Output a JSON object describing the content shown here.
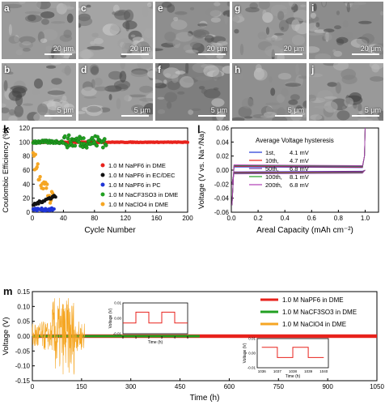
{
  "sem": {
    "panels": [
      {
        "label": "a",
        "scale": "20 μm",
        "tone": "#9a9a9a"
      },
      {
        "label": "c",
        "scale": "20 μm",
        "tone": "#a4a4a4"
      },
      {
        "label": "e",
        "scale": "20 μm",
        "tone": "#8e8e8e"
      },
      {
        "label": "g",
        "scale": "20 μm",
        "tone": "#979797"
      },
      {
        "label": "i",
        "scale": "20 μm",
        "tone": "#8c8c8c"
      },
      {
        "label": "b",
        "scale": "5 μm",
        "tone": "#a0a0a0"
      },
      {
        "label": "d",
        "scale": "5 μm",
        "tone": "#9c9c9c"
      },
      {
        "label": "f",
        "scale": "5 μm",
        "tone": "#7e7e7e"
      },
      {
        "label": "h",
        "scale": "5 μm",
        "tone": "#8f8f8f"
      },
      {
        "label": "j",
        "scale": "5 μm",
        "tone": "#999999"
      }
    ]
  },
  "panel_k": {
    "letter": "k",
    "xlabel": "Cycle Number",
    "ylabel": "Coulombic Efficiency (%)",
    "xticks": [
      "0",
      "40",
      "80",
      "120",
      "160",
      "200"
    ],
    "yticks": [
      "0",
      "20",
      "40",
      "60",
      "80",
      "100",
      "120"
    ],
    "legend": [
      {
        "text": "1.0 M NaPF6 in DME",
        "color": "#e8221c"
      },
      {
        "text": "1.0 M NaPF6 in EC/DEC",
        "color": "#111111"
      },
      {
        "text": "1.0 M NaPF6 in PC",
        "color": "#1f35d6"
      },
      {
        "text": "1.0 M NaCF3SO3 in DME",
        "color": "#21a021"
      },
      {
        "text": "1.0 M NaClO4 in DME",
        "color": "#f5a623"
      }
    ]
  },
  "panel_l": {
    "letter": "l",
    "title": "Average Voltage hysteresis",
    "xlabel": "Areal Capacity (mAh cm⁻²)",
    "ylabel": "Voltage (V vs. Na⁺/Na)",
    "xticks": [
      "0.0",
      "0.2",
      "0.4",
      "0.6",
      "0.8",
      "1.0"
    ],
    "yticks": [
      "-0.06",
      "-0.04",
      "-0.02",
      "0.00",
      "0.02",
      "0.04",
      "0.06"
    ],
    "legend": [
      {
        "cycle": "1st,",
        "value": "4.1 mV",
        "color": "#1f35d6"
      },
      {
        "cycle": "10th,",
        "value": "4.7 mV",
        "color": "#e8221c"
      },
      {
        "cycle": "50th,",
        "value": "6.8 mV",
        "color": "#6a3aa0"
      },
      {
        "cycle": "100th,",
        "value": "8.1 mV",
        "color": "#21a021"
      },
      {
        "cycle": "200th,",
        "value": "6.8 mV",
        "color": "#b03bb5"
      }
    ]
  },
  "panel_m": {
    "letter": "m",
    "xlabel": "Time (h)",
    "ylabel": "Voltage (V)",
    "xticks": [
      "0",
      "150",
      "300",
      "450",
      "600",
      "750",
      "900",
      "1050"
    ],
    "yticks": [
      "-0.15",
      "-0.10",
      "-0.05",
      "0.00",
      "0.05",
      "0.10",
      "0.15"
    ],
    "legend": [
      {
        "text": "1.0 M NaPF6 in DME",
        "color": "#e8221c"
      },
      {
        "text": "1.0 M NaCF3SO3 in DME",
        "color": "#21a021"
      },
      {
        "text": "1.0 M NaClO4 in DME",
        "color": "#f5a623"
      }
    ],
    "inset1": {
      "xlabel": "Time (h)",
      "ylabel": "Voltage (V)",
      "xticks": [
        "0",
        "1",
        "2",
        "3",
        "4",
        "5"
      ],
      "yticks": [
        "-0.01",
        "0.00",
        "0.01"
      ]
    },
    "inset2": {
      "xlabel": "Time (h)",
      "ylabel": "Voltage (V)",
      "xticks": [
        "1036",
        "1037",
        "1038",
        "1039",
        "1040"
      ],
      "yticks": [
        "-0.01",
        "0.00",
        "0.01"
      ]
    }
  }
}
